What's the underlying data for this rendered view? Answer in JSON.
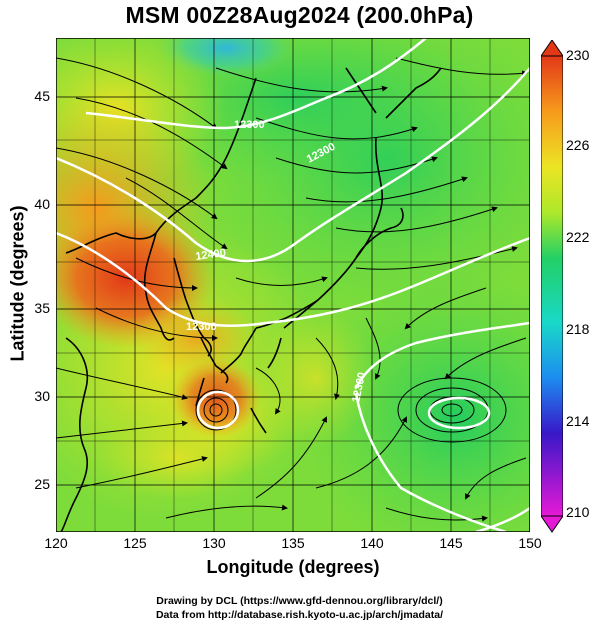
{
  "title": "MSM 00Z28Aug2024 (200.0hPa)",
  "axes": {
    "xlabel": "Longitude (degrees)",
    "ylabel": "Latitude  (degrees)",
    "xticks": [
      "120",
      "125",
      "130",
      "135",
      "140",
      "145",
      "150"
    ],
    "yticks": [
      "45",
      "40",
      "35",
      "30",
      "25"
    ],
    "xlim": [
      120,
      150
    ],
    "ylim": [
      22.4,
      47.6
    ]
  },
  "colorbar": {
    "ticks": [
      "230",
      "226",
      "222",
      "218",
      "214",
      "210"
    ],
    "range": [
      210,
      230
    ],
    "colors": [
      "#e619d6",
      "#3818c8",
      "#1d8cf0",
      "#19d8c8",
      "#22d065",
      "#aee82a",
      "#ece424",
      "#f79a1c",
      "#e23818"
    ]
  },
  "contours": {
    "labels": [
      "12300",
      "12300",
      "12400",
      "12300",
      "12300",
      "12300"
    ]
  },
  "credits": {
    "line1": "Drawing by DCL (https://www.gfd-dennou.org/library/dcl/)",
    "line2": "Data from http://database.rish.kyoto-u.ac.jp/arch/jmadata/"
  },
  "chart_data": {
    "type": "heatmap",
    "variable": "200hPa field with streamlines and geopotential height contours",
    "x_range": [
      120,
      150
    ],
    "y_range": [
      22.4,
      47.6
    ],
    "color_range": [
      210,
      230
    ],
    "contour_labels": [
      "12300",
      "12400"
    ],
    "features": [
      {
        "kind": "cyclonic circulation",
        "lon": 130.3,
        "lat": 29.2
      },
      {
        "kind": "anticyclonic circulation",
        "lon": 145.0,
        "lat": 29.2
      }
    ]
  }
}
